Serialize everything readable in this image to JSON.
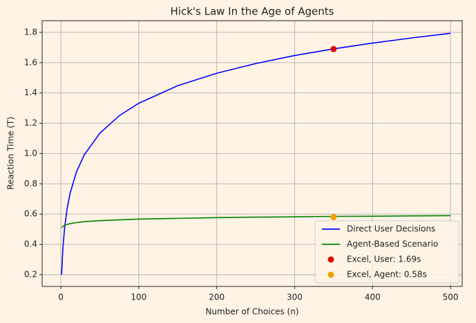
{
  "chart_data": {
    "type": "line",
    "title": "Hick's Law In the Age of Agents",
    "xlabel": "Number of Choices (n)",
    "ylabel": "Reaction Time (T)",
    "x": [
      1,
      2,
      3,
      5,
      8,
      12,
      20,
      30,
      50,
      75,
      100,
      150,
      200,
      250,
      300,
      350,
      400,
      450,
      500
    ],
    "series": [
      {
        "name": "Direct User Decisions",
        "type": "line",
        "color": "#0000ff",
        "values": [
          0.2,
          0.317,
          0.4,
          0.517,
          0.634,
          0.74,
          0.878,
          0.991,
          1.134,
          1.25,
          1.332,
          1.448,
          1.53,
          1.594,
          1.647,
          1.691,
          1.729,
          1.763,
          1.794
        ]
      },
      {
        "name": "Agent-Based Scenario",
        "type": "line",
        "color": "#008000",
        "values": [
          0.51,
          0.516,
          0.52,
          0.526,
          0.532,
          0.537,
          0.544,
          0.55,
          0.557,
          0.562,
          0.567,
          0.572,
          0.577,
          0.58,
          0.582,
          0.585,
          0.586,
          0.588,
          0.59
        ]
      },
      {
        "name": "Excel, User: 1.69s",
        "type": "scatter",
        "color": "#e00000",
        "x": [
          350
        ],
        "values": [
          1.69
        ]
      },
      {
        "name": "Excel, Agent: 0.58s",
        "type": "scatter",
        "color": "#f0a000",
        "x": [
          350
        ],
        "values": [
          0.58
        ]
      }
    ],
    "xlim": [
      -24,
      515
    ],
    "ylim": [
      0.1225,
      1.877
    ],
    "xticks": [
      0,
      100,
      200,
      300,
      400,
      500
    ],
    "yticks": [
      0.2,
      0.4,
      0.6,
      0.8,
      {
        "value": 1,
        "label": "1.0"
      },
      1.2,
      1.4,
      1.6,
      1.8
    ],
    "grid": true,
    "legend": "lower right"
  }
}
